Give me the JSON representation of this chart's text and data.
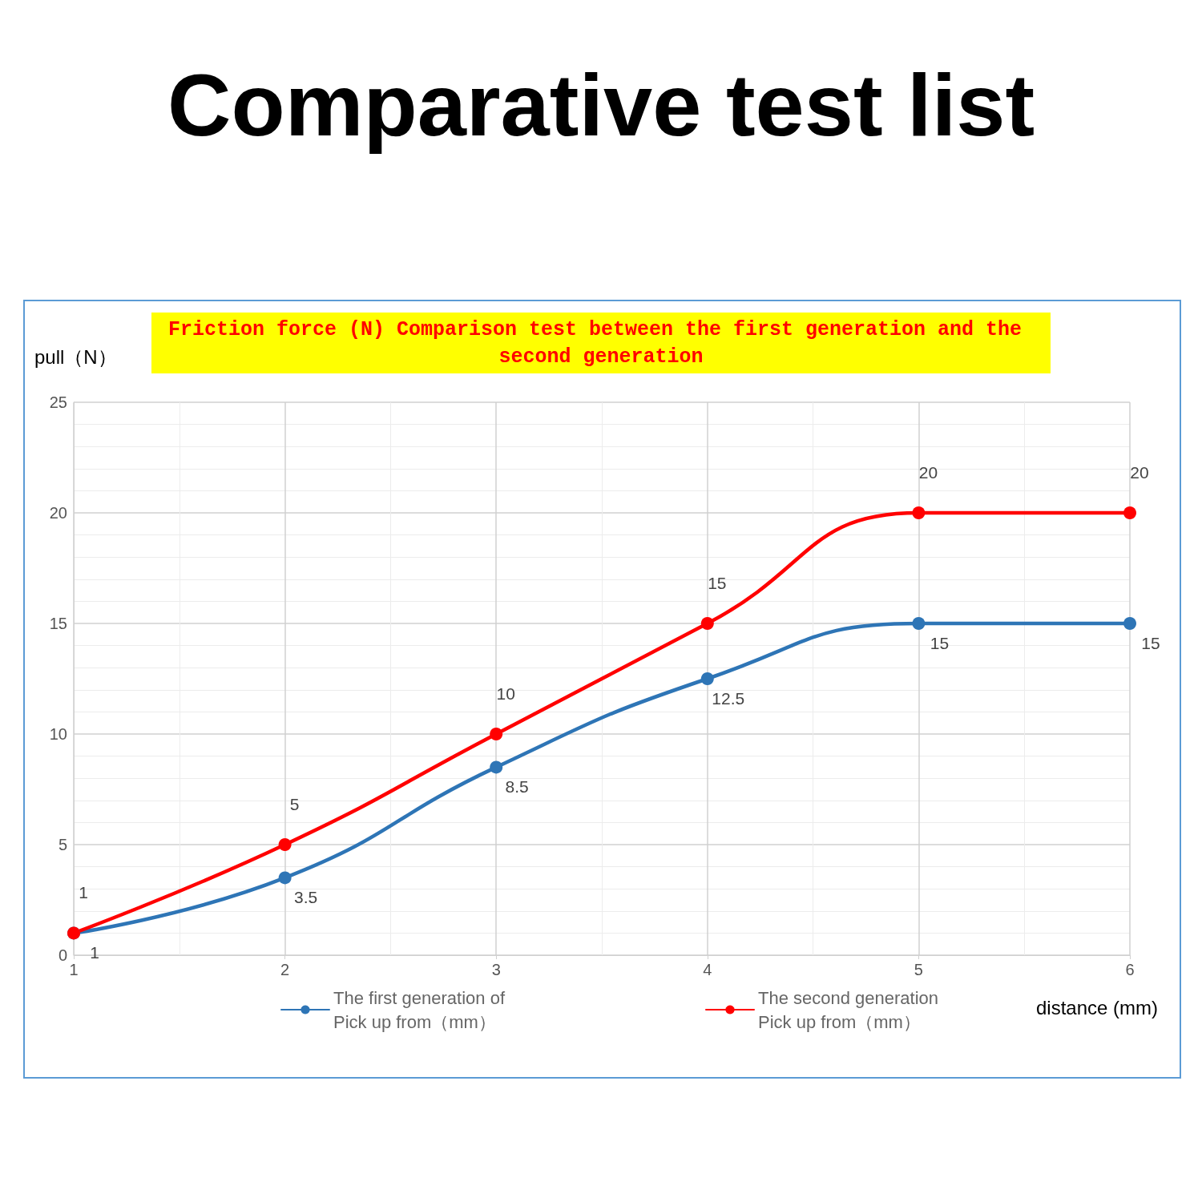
{
  "chart_data": {
    "type": "line",
    "title": "Comparative test list",
    "subtitle": "Friction force (N) Comparison test between the first generation and the second generation",
    "xlabel": "distance (mm)",
    "ylabel": "pull（N）",
    "x": [
      1,
      2,
      3,
      4,
      5,
      6
    ],
    "series": [
      {
        "name": "The first generation of\nPick up from（mm）",
        "color": "#2e75b6",
        "values": [
          1,
          3.5,
          8.5,
          12.5,
          15,
          15
        ]
      },
      {
        "name": "The second generation\nPick up from（mm）",
        "color": "#ff0000",
        "values": [
          1,
          5,
          10,
          15,
          20,
          20
        ]
      }
    ],
    "xlim": [
      1,
      6
    ],
    "xticks": [
      1,
      2,
      3,
      4,
      5,
      6
    ],
    "ylim": [
      0,
      25
    ],
    "yticks": [
      0,
      5,
      10,
      15,
      20,
      25
    ],
    "grid": true,
    "legend": "bottom",
    "marker": "circle",
    "line_style": "solid",
    "data_labels": true
  }
}
